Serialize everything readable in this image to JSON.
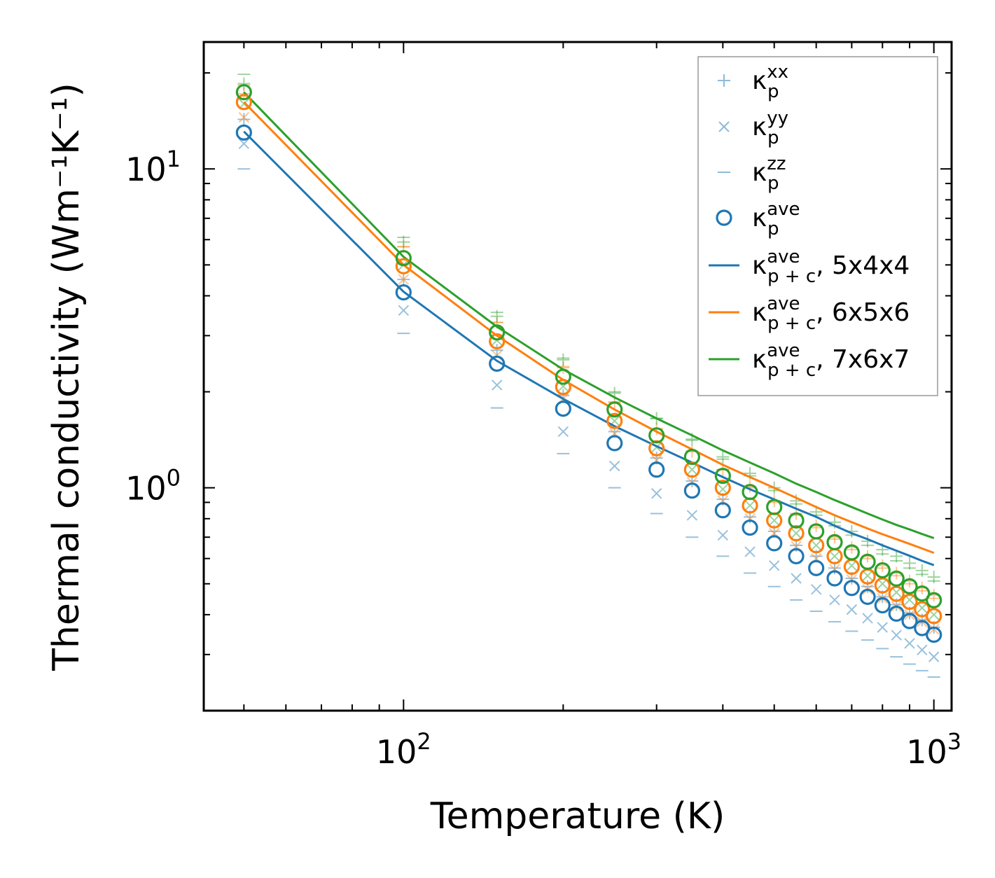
{
  "chart_data": {
    "type": "line+scatter",
    "xscale": "log",
    "yscale": "log",
    "xlabel": "Temperature (K)",
    "ylabel": "Thermal conductivity (Wm⁻¹K⁻¹)",
    "xlim": [
      42,
      1080
    ],
    "ylim": [
      0.2,
      25
    ],
    "xticks": [
      {
        "base": "10",
        "exp": "2",
        "value": 100
      },
      {
        "base": "10",
        "exp": "3",
        "value": 1000
      }
    ],
    "yticks": [
      {
        "base": "10",
        "exp": "0",
        "value": 1
      },
      {
        "base": "10",
        "exp": "1",
        "value": 10
      }
    ],
    "x": [
      50,
      100,
      150,
      200,
      250,
      300,
      350,
      400,
      450,
      500,
      550,
      600,
      650,
      700,
      750,
      800,
      850,
      900,
      950,
      1000
    ],
    "legend": {
      "position": "top-right",
      "entries": [
        {
          "base": "κ",
          "sub": "p",
          "sup": "xx",
          "suffix": "",
          "marker": "plus"
        },
        {
          "base": "κ",
          "sub": "p",
          "sup": "yy",
          "suffix": "",
          "marker": "x"
        },
        {
          "base": "κ",
          "sub": "p",
          "sup": "zz",
          "suffix": "",
          "marker": "dash"
        },
        {
          "base": "κ",
          "sub": "p",
          "sup": "ave",
          "suffix": "",
          "marker": "circle"
        },
        {
          "base": "κ",
          "sub": "p + c",
          "sup": "ave",
          "suffix": ", 5x4x4",
          "marker": "line",
          "color": "#1f77b4"
        },
        {
          "base": "κ",
          "sub": "p + c",
          "sup": "ave",
          "suffix": ", 6x5x6",
          "marker": "line",
          "color": "#ff7f0e"
        },
        {
          "base": "κ",
          "sub": "p + c",
          "sup": "ave",
          "suffix": ", 7x6x7",
          "marker": "line",
          "color": "#2ca02c"
        }
      ]
    },
    "series": [
      {
        "name": "5x4x4",
        "color": "#1f77b4",
        "kappa_p_xx": [
          14.3,
          4.5,
          2.7,
          1.95,
          1.5,
          1.24,
          1.05,
          0.92,
          0.81,
          0.73,
          0.66,
          0.61,
          0.56,
          0.52,
          0.49,
          0.455,
          0.43,
          0.405,
          0.385,
          0.365
        ],
        "kappa_p_yy": [
          12.0,
          3.6,
          2.1,
          1.5,
          1.17,
          0.96,
          0.82,
          0.71,
          0.63,
          0.57,
          0.52,
          0.48,
          0.445,
          0.415,
          0.39,
          0.365,
          0.345,
          0.325,
          0.31,
          0.295
        ],
        "kappa_p_zz": [
          10.0,
          3.05,
          1.78,
          1.28,
          1.0,
          0.83,
          0.7,
          0.61,
          0.54,
          0.49,
          0.445,
          0.41,
          0.38,
          0.355,
          0.333,
          0.313,
          0.295,
          0.28,
          0.267,
          0.255
        ],
        "kappa_p_ave": [
          13.0,
          4.1,
          2.45,
          1.77,
          1.38,
          1.14,
          0.98,
          0.85,
          0.75,
          0.67,
          0.61,
          0.56,
          0.52,
          0.485,
          0.455,
          0.428,
          0.403,
          0.382,
          0.363,
          0.346
        ],
        "kappa_pc_ave": [
          13.1,
          4.12,
          2.5,
          1.9,
          1.56,
          1.35,
          1.2,
          1.08,
          0.99,
          0.92,
          0.86,
          0.81,
          0.76,
          0.72,
          0.69,
          0.66,
          0.635,
          0.612,
          0.59,
          0.572
        ]
      },
      {
        "name": "6x5x6",
        "color": "#ff7f0e",
        "kappa_p_xx": [
          17.2,
          5.7,
          3.3,
          2.38,
          1.85,
          1.53,
          1.3,
          1.14,
          1.01,
          0.91,
          0.83,
          0.76,
          0.7,
          0.65,
          0.61,
          0.57,
          0.54,
          0.51,
          0.485,
          0.46
        ],
        "kappa_p_yy": [
          14.5,
          4.5,
          2.6,
          1.9,
          1.48,
          1.22,
          1.04,
          0.91,
          0.8,
          0.72,
          0.655,
          0.6,
          0.555,
          0.515,
          0.48,
          0.45,
          0.425,
          0.4,
          0.38,
          0.36
        ],
        "kappa_p_zz": [
          18.3,
          5.7,
          3.3,
          2.4,
          1.86,
          1.53,
          1.3,
          1.14,
          1.0,
          0.9,
          0.82,
          0.75,
          0.69,
          0.64,
          0.6,
          0.56,
          0.53,
          0.5,
          0.475,
          0.45
        ],
        "kappa_p_ave": [
          16.2,
          4.95,
          2.88,
          2.07,
          1.62,
          1.33,
          1.14,
          1.0,
          0.88,
          0.79,
          0.72,
          0.66,
          0.61,
          0.565,
          0.527,
          0.494,
          0.465,
          0.439,
          0.416,
          0.396
        ],
        "kappa_pc_ave": [
          16.2,
          5.0,
          3.0,
          2.18,
          1.76,
          1.5,
          1.32,
          1.18,
          1.08,
          1.0,
          0.93,
          0.87,
          0.82,
          0.78,
          0.745,
          0.715,
          0.69,
          0.667,
          0.645,
          0.625
        ]
      },
      {
        "name": "7x6x7",
        "color": "#2ca02c",
        "kappa_p_xx": [
          18.5,
          5.9,
          3.45,
          2.52,
          1.98,
          1.65,
          1.42,
          1.25,
          1.11,
          1.0,
          0.91,
          0.84,
          0.78,
          0.73,
          0.68,
          0.64,
          0.61,
          0.58,
          0.55,
          0.525
        ],
        "kappa_p_yy": [
          16.0,
          5.0,
          2.9,
          2.08,
          1.62,
          1.34,
          1.14,
          0.99,
          0.88,
          0.79,
          0.72,
          0.66,
          0.61,
          0.57,
          0.53,
          0.5,
          0.47,
          0.445,
          0.42,
          0.4
        ],
        "kappa_p_zz": [
          19.8,
          6.1,
          3.55,
          2.55,
          2.0,
          1.65,
          1.41,
          1.23,
          1.09,
          0.98,
          0.89,
          0.82,
          0.76,
          0.71,
          0.66,
          0.62,
          0.59,
          0.56,
          0.535,
          0.51
        ],
        "kappa_p_ave": [
          17.4,
          5.25,
          3.07,
          2.23,
          1.76,
          1.46,
          1.25,
          1.09,
          0.97,
          0.87,
          0.79,
          0.73,
          0.675,
          0.627,
          0.586,
          0.551,
          0.519,
          0.491,
          0.466,
          0.444
        ],
        "kappa_pc_ave": [
          17.4,
          5.3,
          3.2,
          2.35,
          1.92,
          1.65,
          1.46,
          1.31,
          1.2,
          1.11,
          1.03,
          0.97,
          0.915,
          0.87,
          0.83,
          0.795,
          0.765,
          0.74,
          0.716,
          0.695
        ]
      }
    ]
  }
}
